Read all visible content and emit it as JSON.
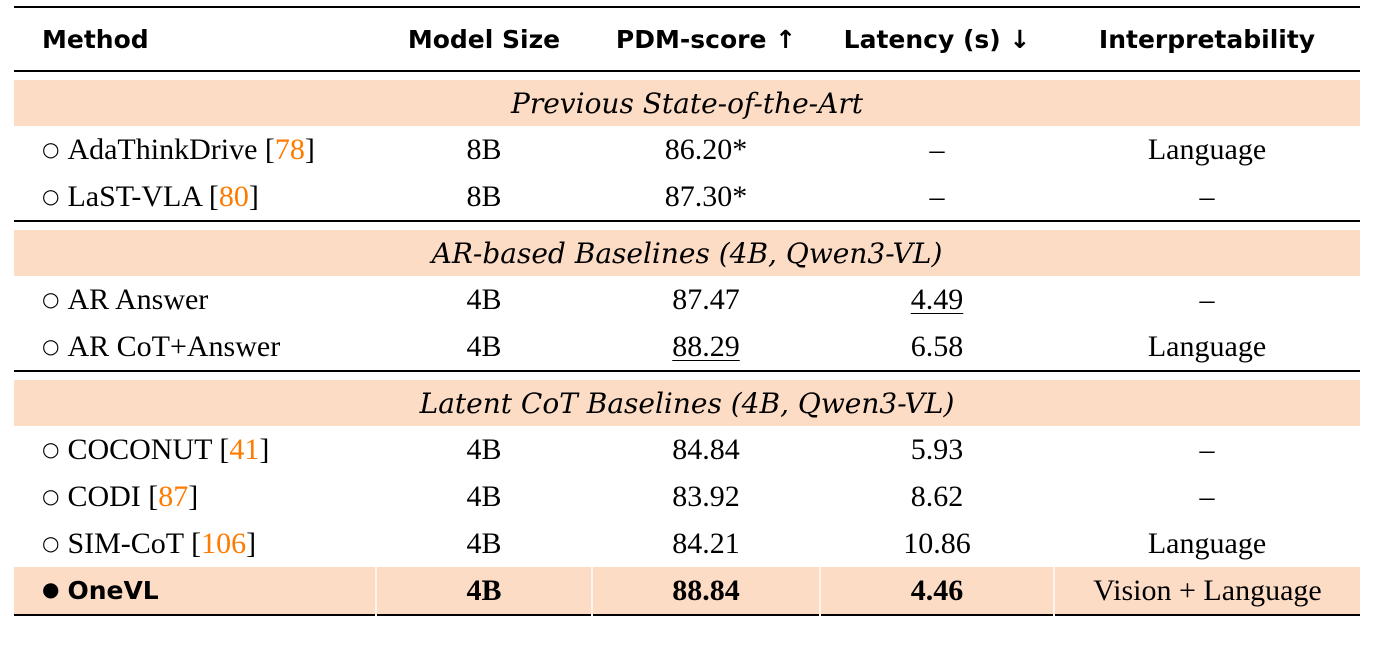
{
  "headers": {
    "method": "Method",
    "model_size": "Model Size",
    "pdm": "PDM-score ↑",
    "latency": "Latency (s) ↓",
    "interpretability": "Interpretability"
  },
  "sections": [
    {
      "title": "Previous State-of-the-Art",
      "rows": [
        {
          "bullet": "○",
          "name": "AdaThinkDrive [",
          "cite": "78",
          "close": "]",
          "size": "8B",
          "pdm": "86.20*",
          "latency": "–",
          "interp": "Language"
        },
        {
          "bullet": "○",
          "name": "LaST-VLA [",
          "cite": "80",
          "close": "]",
          "size": "8B",
          "pdm": "87.30*",
          "latency": "–",
          "interp": "–"
        }
      ]
    },
    {
      "title": "AR-based Baselines (4B, Qwen3-VL)",
      "rows": [
        {
          "bullet": "○",
          "name": "AR Answer",
          "cite": "",
          "close": "",
          "size": "4B",
          "pdm": "87.47",
          "latency": "4.49",
          "interp": "–",
          "latency_underlined": true
        },
        {
          "bullet": "○",
          "name": "AR CoT+Answer",
          "cite": "",
          "close": "",
          "size": "4B",
          "pdm": "88.29",
          "latency": "6.58",
          "interp": "Language",
          "pdm_underlined": true
        }
      ]
    },
    {
      "title": "Latent CoT Baselines (4B, Qwen3-VL)",
      "rows": [
        {
          "bullet": "○",
          "name": "COCONUT [",
          "cite": "41",
          "close": "]",
          "size": "4B",
          "pdm": "84.84",
          "latency": "5.93",
          "interp": "–"
        },
        {
          "bullet": "○",
          "name": "CODI [",
          "cite": "87",
          "close": "]",
          "size": "4B",
          "pdm": "83.92",
          "latency": "8.62",
          "interp": "–"
        },
        {
          "bullet": "○",
          "name": "SIM-CoT [",
          "cite": "106",
          "close": "]",
          "size": "4B",
          "pdm": "84.21",
          "latency": "10.86",
          "interp": "Language"
        }
      ]
    }
  ],
  "ours": {
    "bullet": "●",
    "name": "OneVL",
    "size": "4B",
    "pdm": "88.84",
    "latency": "4.46",
    "interp": "Vision + Language"
  },
  "colors": {
    "highlight": "#fddcc6",
    "citation": "#ff7a00"
  }
}
